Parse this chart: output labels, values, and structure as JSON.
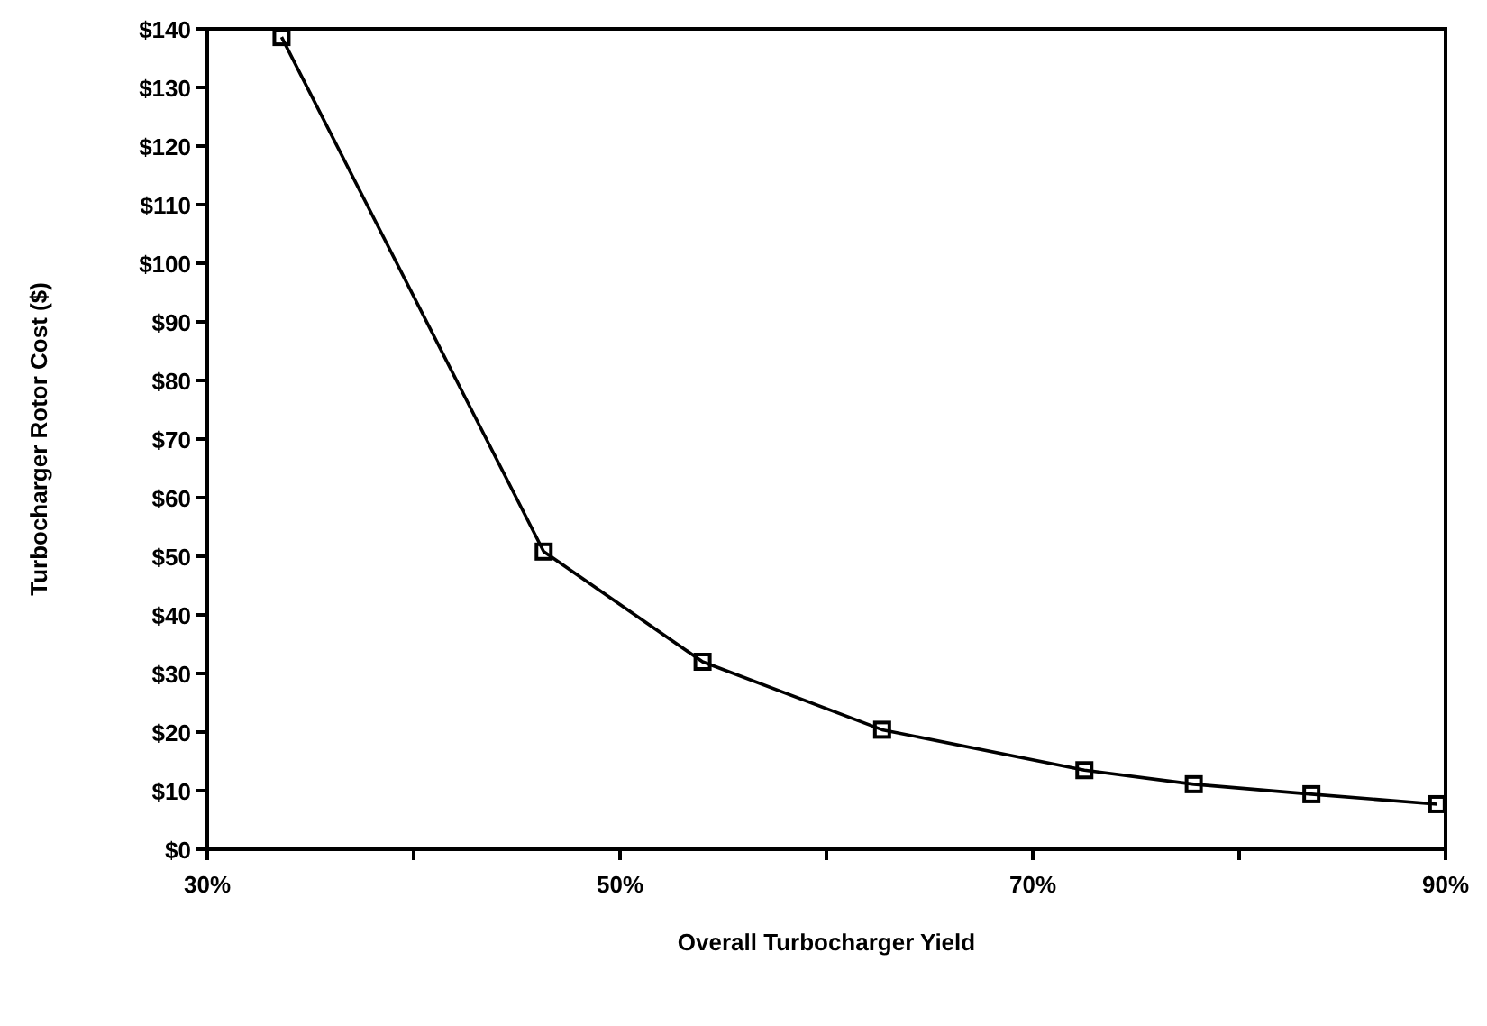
{
  "chart_data": {
    "type": "line",
    "xlabel": "Overall Turbocharger Yield",
    "ylabel": "Turbocharger Rotor Cost ($)",
    "x": [
      33.6,
      46.3,
      54.0,
      62.7,
      72.5,
      77.8,
      83.5,
      89.6
    ],
    "series": [
      {
        "color": "#000000",
        "values": [
          138.6,
          50.8,
          32.0,
          20.4,
          13.5,
          11.1,
          9.4,
          7.7
        ]
      }
    ],
    "xlim": [
      30,
      90
    ],
    "xticks": [
      {
        "value": 30,
        "label": "30%"
      },
      {
        "value": 40,
        "label": null
      },
      {
        "value": 50,
        "label": "50%"
      },
      {
        "value": 60,
        "label": null
      },
      {
        "value": 70,
        "label": "70%"
      },
      {
        "value": 80,
        "label": null
      },
      {
        "value": 90,
        "label": "90%"
      }
    ],
    "ylim": [
      0,
      140
    ],
    "yticks": [
      {
        "value": 0,
        "label": "$0"
      },
      {
        "value": 10,
        "label": "$10"
      },
      {
        "value": 20,
        "label": "$20"
      },
      {
        "value": 30,
        "label": "$30"
      },
      {
        "value": 40,
        "label": "$40"
      },
      {
        "value": 50,
        "label": "$50"
      },
      {
        "value": 60,
        "label": "$60"
      },
      {
        "value": 70,
        "label": "$70"
      },
      {
        "value": 80,
        "label": "$80"
      },
      {
        "value": 90,
        "label": "$90"
      },
      {
        "value": 100,
        "label": "$100"
      },
      {
        "value": 110,
        "label": "$110"
      },
      {
        "value": 120,
        "label": "$120"
      },
      {
        "value": 130,
        "label": "$130"
      },
      {
        "value": 140,
        "label": "$140"
      }
    ],
    "grid": false,
    "marker": "square",
    "line_style": "solid"
  }
}
